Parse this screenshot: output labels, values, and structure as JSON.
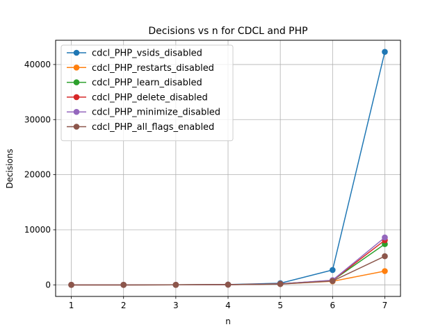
{
  "chart_data": {
    "type": "line",
    "title": "Decisions vs n for CDCL and PHP",
    "xlabel": "n",
    "ylabel": "Decisions",
    "x": [
      1,
      2,
      3,
      4,
      5,
      6,
      7
    ],
    "xlim": [
      0.7,
      7.3
    ],
    "ylim": [
      -2100,
      44400
    ],
    "xticks": [
      1,
      2,
      3,
      4,
      5,
      6,
      7
    ],
    "yticks": [
      0,
      10000,
      20000,
      30000,
      40000
    ],
    "grid": true,
    "legend_position": "upper-left",
    "series": [
      {
        "name": "cdcl_PHP_vsids_disabled",
        "color": "#1f77b4",
        "values": [
          0,
          2,
          10,
          60,
          300,
          2700,
          42300
        ]
      },
      {
        "name": "cdcl_PHP_restarts_disabled",
        "color": "#ff7f0e",
        "values": [
          0,
          2,
          8,
          40,
          150,
          650,
          2500
        ]
      },
      {
        "name": "cdcl_PHP_learn_disabled",
        "color": "#2ca02c",
        "values": [
          0,
          2,
          8,
          40,
          180,
          800,
          7400
        ]
      },
      {
        "name": "cdcl_PHP_delete_disabled",
        "color": "#d62728",
        "values": [
          0,
          2,
          8,
          40,
          180,
          800,
          8100
        ]
      },
      {
        "name": "cdcl_PHP_minimize_disabled",
        "color": "#9467bd",
        "values": [
          0,
          2,
          8,
          40,
          180,
          850,
          8600
        ]
      },
      {
        "name": "cdcl_PHP_all_flags_enabled",
        "color": "#8c564b",
        "values": [
          0,
          2,
          8,
          40,
          160,
          700,
          5200
        ]
      }
    ]
  }
}
